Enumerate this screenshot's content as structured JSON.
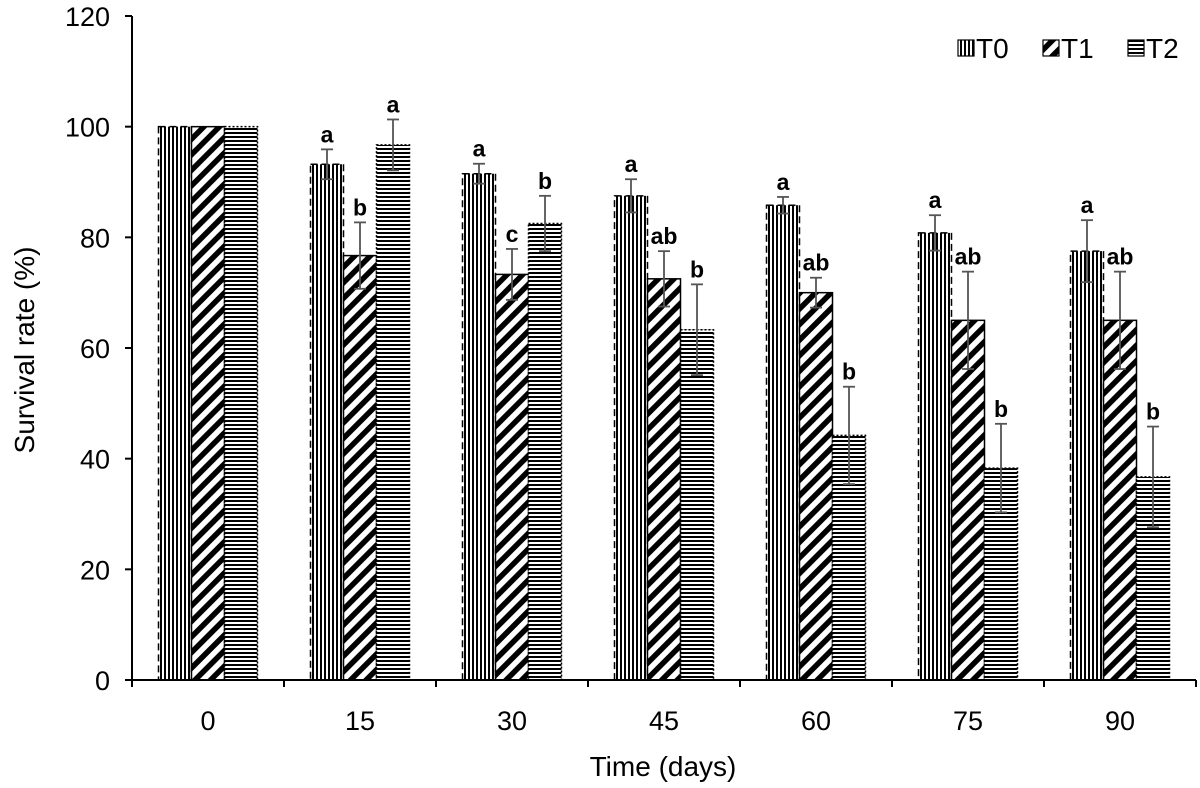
{
  "chart_data": {
    "type": "bar",
    "title": "",
    "xlabel": "Time (days)",
    "ylabel": "Survival rate (%)",
    "ylim": [
      0,
      120
    ],
    "yticks": [
      "0",
      "20",
      "40",
      "60",
      "80",
      "100",
      "120"
    ],
    "categories": [
      "0",
      "15",
      "30",
      "45",
      "60",
      "75",
      "90"
    ],
    "legend_position": "top-right",
    "series": [
      {
        "name": "T0",
        "pattern": "vertical",
        "values": [
          100,
          93.2,
          91.5,
          87.5,
          85.8,
          80.8,
          77.5
        ],
        "errors": [
          0,
          2.7,
          1.8,
          3.0,
          1.5,
          3.2,
          5.6
        ],
        "labels": [
          "",
          "a",
          "a",
          "a",
          "a",
          "a",
          "a"
        ]
      },
      {
        "name": "T1",
        "pattern": "diagonal",
        "values": [
          100,
          76.7,
          73.3,
          72.5,
          70.0,
          65.0,
          65.0
        ],
        "errors": [
          0,
          6.0,
          4.6,
          5.0,
          2.7,
          8.8,
          8.8
        ],
        "labels": [
          "",
          "b",
          "c",
          "ab",
          "ab",
          "ab",
          "ab"
        ]
      },
      {
        "name": "T2",
        "pattern": "horizontal",
        "values": [
          100,
          96.7,
          82.5,
          63.3,
          44.2,
          38.3,
          36.7
        ],
        "errors": [
          0,
          4.6,
          5.0,
          8.2,
          8.8,
          8.0,
          9.1
        ],
        "labels": [
          "",
          "a",
          "b",
          "b",
          "b",
          "b",
          "b"
        ]
      }
    ]
  }
}
